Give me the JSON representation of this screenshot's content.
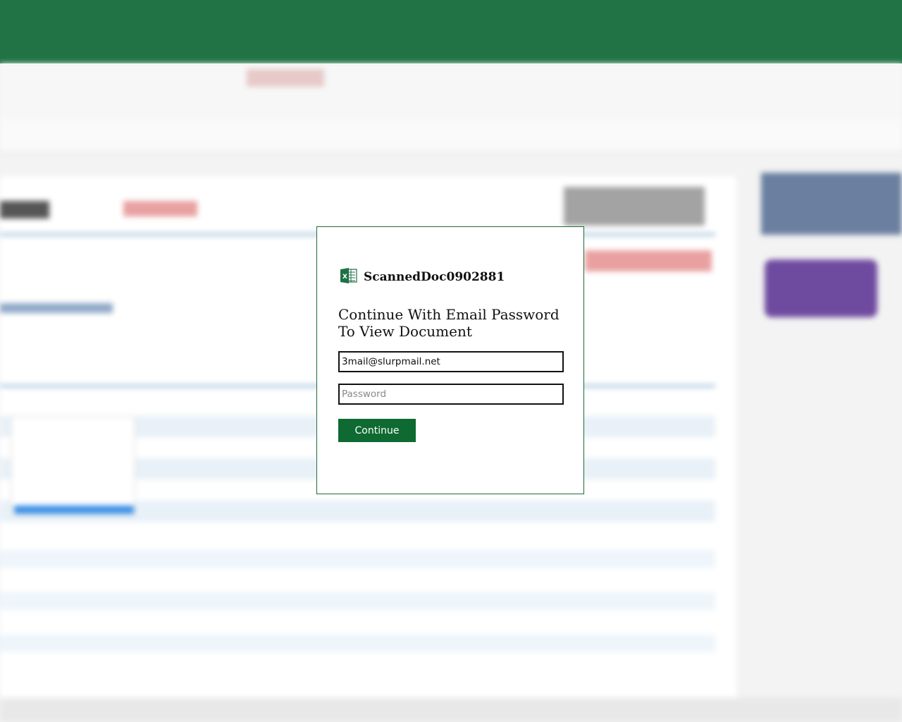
{
  "colors": {
    "brand": "#217346",
    "button": "#0e6a30",
    "modal_border": "#1e6b3c"
  },
  "modal": {
    "icon": "excel-icon",
    "document_name": "ScannedDoc0902881",
    "heading": "Continue With Email Password To View Document",
    "email_value": "3mail@slurpmail.net",
    "password_placeholder": "Password",
    "continue_label": "Continue"
  }
}
